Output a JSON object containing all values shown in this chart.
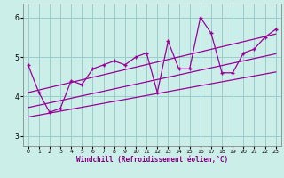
{
  "title": "",
  "xlabel": "Windchill (Refroidissement éolien,°C)",
  "ylabel": "",
  "xlim": [
    -0.5,
    23.5
  ],
  "ylim": [
    2.75,
    6.35
  ],
  "yticks": [
    3,
    4,
    5,
    6
  ],
  "xticks": [
    0,
    1,
    2,
    3,
    4,
    5,
    6,
    7,
    8,
    9,
    10,
    11,
    12,
    13,
    14,
    15,
    16,
    17,
    18,
    19,
    20,
    21,
    22,
    23
  ],
  "data_y": [
    4.8,
    4.1,
    3.6,
    3.7,
    4.4,
    4.3,
    4.7,
    4.8,
    4.9,
    4.8,
    5.0,
    5.1,
    4.1,
    5.4,
    4.7,
    4.7,
    6.0,
    5.6,
    4.6,
    4.6,
    5.1,
    5.2,
    5.5,
    5.7
  ],
  "line_color": "#990099",
  "bg_color": "#cceee8",
  "grid_color": "#99cccc",
  "trend_line": [
    [
      0,
      3.72
    ],
    [
      23,
      5.08
    ]
  ],
  "upper_line": [
    [
      0,
      4.1
    ],
    [
      23,
      5.58
    ]
  ],
  "lower_line": [
    [
      0,
      3.48
    ],
    [
      23,
      4.62
    ]
  ],
  "xlabel_color": "#800080",
  "tick_color": "#000000"
}
